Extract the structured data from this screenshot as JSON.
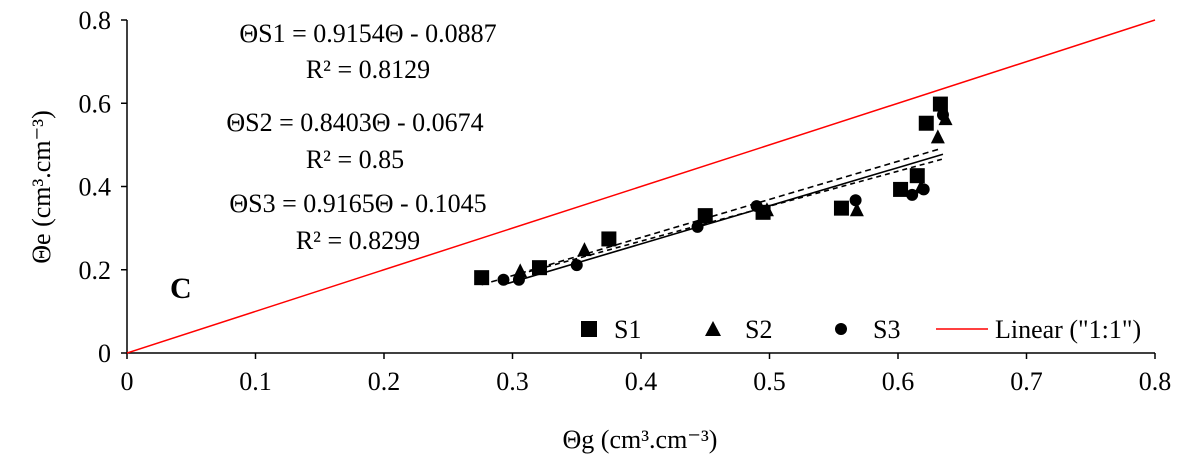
{
  "chart_data": {
    "type": "scatter",
    "panel_label": "C",
    "xlabel": "Θg (cm³.cm⁻³)",
    "ylabel": "Θe (cm³.cm⁻³)",
    "xlim": [
      0,
      0.8
    ],
    "ylim": [
      0,
      0.8
    ],
    "x_ticks": [
      "0",
      "0.1",
      "0.2",
      "0.3",
      "0.4",
      "0.5",
      "0.6",
      "0.7",
      "0.8"
    ],
    "y_ticks": [
      "0",
      "0.2",
      "0.4",
      "0.6",
      "0.8"
    ],
    "grid": false,
    "legend_position": "bottom-right",
    "series": [
      {
        "name": "S1",
        "marker": "square",
        "color": "#000000",
        "points": [
          [
            0.276,
            0.181
          ],
          [
            0.321,
            0.205
          ],
          [
            0.375,
            0.274
          ],
          [
            0.45,
            0.33
          ],
          [
            0.495,
            0.338
          ],
          [
            0.556,
            0.348
          ],
          [
            0.602,
            0.393
          ],
          [
            0.615,
            0.426
          ],
          [
            0.622,
            0.552
          ],
          [
            0.633,
            0.598
          ]
        ]
      },
      {
        "name": "S2",
        "marker": "triangle",
        "color": "#000000",
        "points": [
          [
            0.306,
            0.196
          ],
          [
            0.356,
            0.247
          ],
          [
            0.498,
            0.343
          ],
          [
            0.568,
            0.343
          ],
          [
            0.618,
            0.398
          ],
          [
            0.631,
            0.518
          ],
          [
            0.637,
            0.562
          ]
        ]
      },
      {
        "name": "S3",
        "marker": "circle",
        "color": "#000000",
        "points": [
          [
            0.293,
            0.176
          ],
          [
            0.305,
            0.176
          ],
          [
            0.35,
            0.211
          ],
          [
            0.444,
            0.303
          ],
          [
            0.49,
            0.353
          ],
          [
            0.567,
            0.367
          ],
          [
            0.611,
            0.38
          ],
          [
            0.62,
            0.393
          ],
          [
            0.635,
            0.572
          ]
        ]
      },
      {
        "name": "Linear (\"1:1\")",
        "type": "line",
        "color": "#ff0000",
        "points": [
          [
            0,
            0
          ],
          [
            0.8,
            0.8
          ]
        ]
      }
    ],
    "trendlines": [
      {
        "series": "S1",
        "equation": "ΘS1 = 0.9154Θ - 0.0887",
        "r2": "R² = 0.8129",
        "slope": 0.9154,
        "intercept": -0.0887,
        "x_range": [
          0.276,
          0.633
        ]
      },
      {
        "series": "S2",
        "equation": "ΘS2 = 0.8403Θ - 0.0674",
        "r2": "R² = 0.85",
        "slope": 0.8403,
        "intercept": -0.0674,
        "x_range": [
          0.306,
          0.637
        ]
      },
      {
        "series": "S3",
        "equation": "ΘS3 = 0.9165Θ - 0.1045",
        "r2": "R² = 0.8299",
        "slope": 0.9165,
        "intercept": -0.1045,
        "x_range": [
          0.293,
          0.635
        ]
      }
    ]
  }
}
